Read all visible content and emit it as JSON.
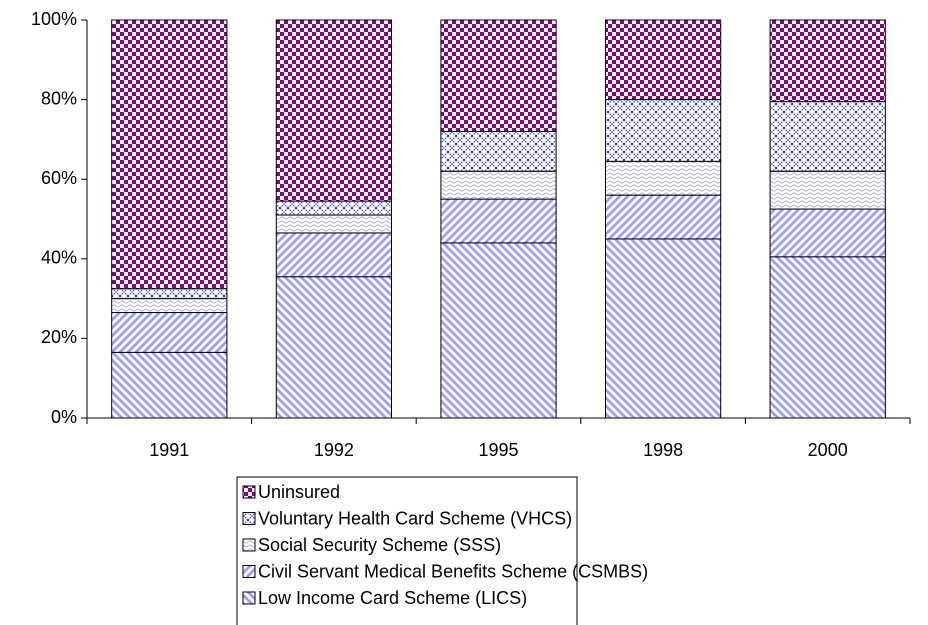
{
  "chart_data": {
    "type": "stacked_bar",
    "categories": [
      "1991",
      "1992",
      "1995",
      "1998",
      "2000"
    ],
    "series": [
      {
        "name": "Low Income Card Scheme (LICS)",
        "color": "#9999ff",
        "values": [
          16.5,
          35.5,
          44,
          45,
          40.5
        ]
      },
      {
        "name": "Civil Servant Medical Benefits Scheme (CSMBS)",
        "color": "#9999ff",
        "values": [
          10,
          11,
          11,
          11,
          12
        ]
      },
      {
        "name": "Social Security Scheme (SSS)",
        "color": "#b3b3f0",
        "values": [
          3.5,
          4.5,
          7,
          8.5,
          9.5
        ]
      },
      {
        "name": "Voluntary Health Card Scheme (VHCS)",
        "color": "#3333cc",
        "values": [
          2.5,
          3.5,
          10,
          15.5,
          17.5
        ]
      },
      {
        "name": "Uninsured",
        "color": "#800080",
        "values": [
          67.5,
          45.5,
          28,
          20,
          20.5
        ]
      }
    ],
    "ylim": [
      0,
      100
    ],
    "yticks": [
      {
        "value": 0,
        "label": "0%"
      },
      {
        "value": 20,
        "label": "20%"
      },
      {
        "value": 40,
        "label": "40%"
      },
      {
        "value": 60,
        "label": "60%"
      },
      {
        "value": 80,
        "label": "80%"
      },
      {
        "value": 100,
        "label": "100%"
      }
    ]
  }
}
